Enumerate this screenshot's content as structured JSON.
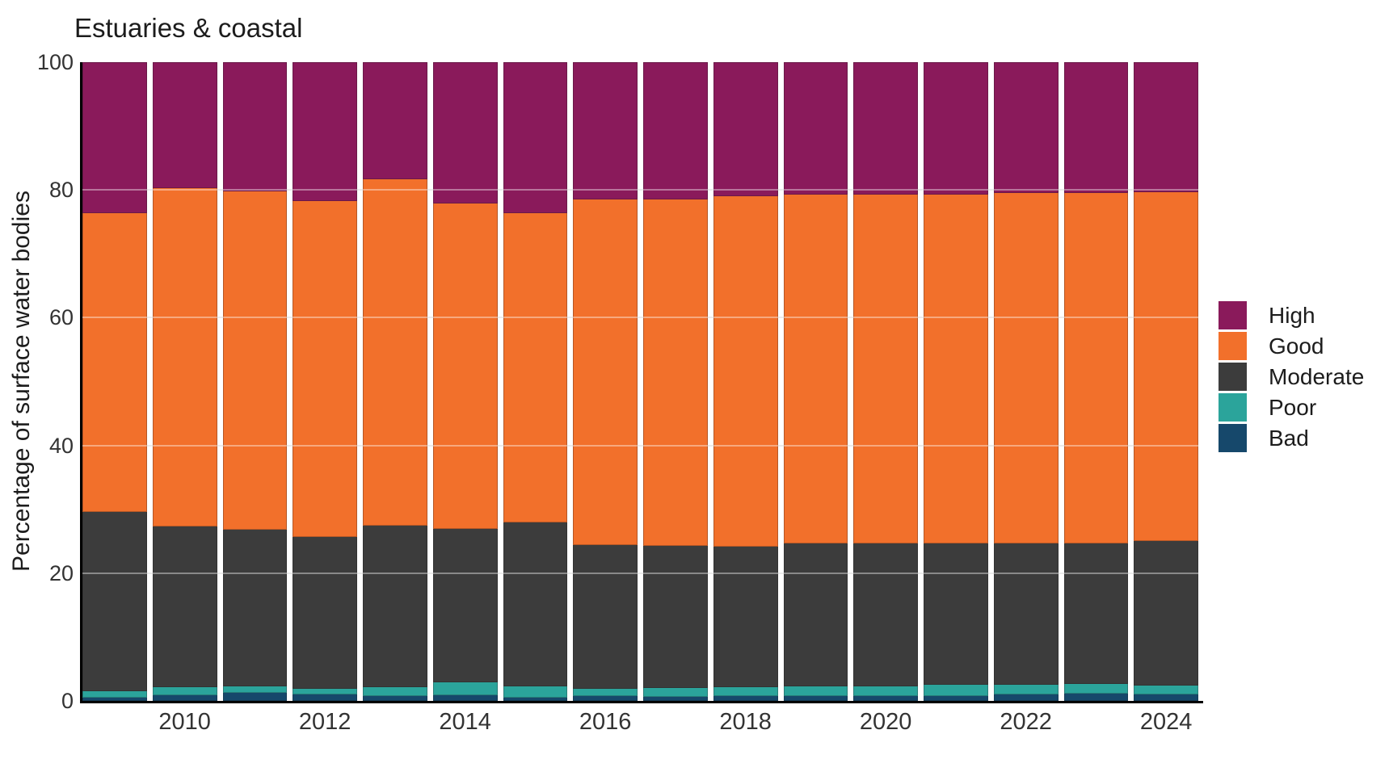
{
  "title": "Estuaries & coastal",
  "y_axis": {
    "label": "Percentage of surface water bodies",
    "ticks": [
      0,
      20,
      40,
      60,
      80,
      100
    ],
    "gridlines": [
      20,
      40,
      60,
      80
    ],
    "max": 100
  },
  "x_axis": {
    "ticks": [
      {
        "label": "2010",
        "bar_index": 1
      },
      {
        "label": "2012",
        "bar_index": 3
      },
      {
        "label": "2014",
        "bar_index": 5
      },
      {
        "label": "2016",
        "bar_index": 7
      },
      {
        "label": "2018",
        "bar_index": 9
      },
      {
        "label": "2020",
        "bar_index": 11
      },
      {
        "label": "2022",
        "bar_index": 13
      },
      {
        "label": "2024",
        "bar_index": 15
      }
    ]
  },
  "legend": {
    "entries": [
      {
        "label": "High",
        "color": "#8A1A5B"
      },
      {
        "label": "Good",
        "color": "#F2702B"
      },
      {
        "label": "Moderate",
        "color": "#3C3C3C"
      },
      {
        "label": "Poor",
        "color": "#2BA49B"
      },
      {
        "label": "Bad",
        "color": "#16486B"
      }
    ]
  },
  "colors": {
    "high": "#8A1A5B",
    "good": "#F2702B",
    "moderate": "#3C3C3C",
    "poor": "#2BA49B",
    "bad": "#16486B",
    "axis": "#000000",
    "gridline": "#DEDEDE"
  },
  "chart_data": {
    "type": "bar",
    "stacked": true,
    "title": "Estuaries & coastal",
    "ylabel": "Percentage of surface water bodies",
    "ylim": [
      0,
      100
    ],
    "legend_position": "right",
    "grid": true,
    "categories": [
      2009,
      2010,
      2011,
      2012,
      2013,
      2014,
      2015,
      2016,
      2017,
      2018,
      2019,
      2020,
      2021,
      2022,
      2023,
      2024
    ],
    "series": [
      {
        "name": "High",
        "color": "#8A1A5B",
        "values": [
          23.6,
          19.7,
          20.2,
          21.7,
          18.3,
          22.1,
          23.6,
          21.5,
          21.5,
          21.0,
          20.7,
          20.7,
          20.7,
          20.5,
          20.5,
          20.3
        ]
      },
      {
        "name": "Good",
        "color": "#F2702B",
        "values": [
          46.8,
          53.0,
          53.0,
          52.7,
          54.3,
          51.0,
          48.4,
          54.1,
          54.2,
          54.8,
          54.7,
          54.7,
          54.7,
          54.9,
          54.8,
          54.7
        ]
      },
      {
        "name": "Moderate",
        "color": "#3C3C3C",
        "values": [
          28.1,
          25.2,
          24.5,
          23.7,
          25.2,
          24.0,
          25.7,
          22.5,
          22.3,
          22.1,
          22.3,
          22.3,
          22.1,
          22.1,
          22.1,
          22.6
        ]
      },
      {
        "name": "Poor",
        "color": "#2BA49B",
        "values": [
          1.0,
          1.2,
          1.1,
          0.9,
          1.4,
          2.0,
          1.8,
          1.2,
          1.4,
          1.3,
          1.6,
          1.5,
          1.7,
          1.5,
          1.5,
          1.4
        ]
      },
      {
        "name": "Bad",
        "color": "#16486B",
        "values": [
          0.5,
          0.9,
          1.2,
          1.0,
          0.8,
          0.9,
          0.5,
          0.7,
          0.6,
          0.8,
          0.7,
          0.8,
          0.8,
          1.0,
          1.1,
          1.0
        ]
      }
    ]
  }
}
